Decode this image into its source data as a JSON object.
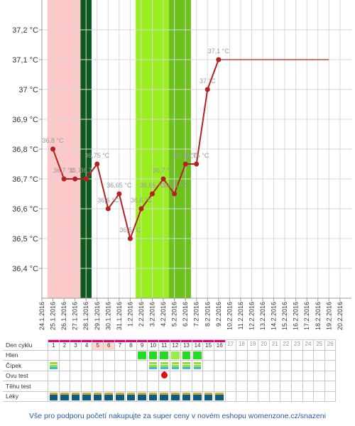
{
  "chart_data": {
    "type": "line",
    "ylim": [
      36.3,
      37.3
    ],
    "y_ticks": [
      {
        "value": 37.2,
        "label": "37,2 °C"
      },
      {
        "value": 37.1,
        "label": "37,1 °C"
      },
      {
        "value": 37.0,
        "label": "37 °C"
      },
      {
        "value": 36.9,
        "label": "36,9 °C"
      },
      {
        "value": 36.8,
        "label": "36,8 °C"
      },
      {
        "value": 36.7,
        "label": "36,7 °C"
      },
      {
        "value": 36.6,
        "label": "36,6 °C"
      },
      {
        "value": 36.5,
        "label": "36,5 °C"
      },
      {
        "value": 36.4,
        "label": "36,4 °C"
      }
    ],
    "categories": [
      "24.1.2016",
      "25.1.2016",
      "26.1.2016",
      "27.1.2016",
      "28.1.2016",
      "29.1.2016",
      "30.1.2016",
      "31.1.2016",
      "1.2.2016",
      "2.2.2016",
      "3.2.2016",
      "4.2.2016",
      "5.2.2016",
      "6.2.2016",
      "7.2.2016",
      "8.2.2016",
      "9.2.2016",
      "10.2.2016",
      "11.2.2016",
      "12.2.2016",
      "13.2.2016",
      "14.2.2016",
      "15.2.2016",
      "16.2.2016",
      "17.2.2016",
      "18.2.2016",
      "19.2.2016",
      "20.2.2016"
    ],
    "series": [
      {
        "values": [
          null,
          36.8,
          36.7,
          36.7,
          36.7,
          36.75,
          36.6,
          36.65,
          36.5,
          36.6,
          36.65,
          36.7,
          36.65,
          36.75,
          36.75,
          37.0,
          37.1,
          null,
          null,
          null,
          null,
          null,
          null,
          null,
          null,
          null,
          null,
          null
        ],
        "color": "#b22222"
      }
    ],
    "projection": {
      "from": "9.2.2016",
      "to": "19.2.2016",
      "value": 37.1,
      "color": "#b22222"
    },
    "point_labels": [
      {
        "x": "25.1.2016",
        "text": "36,8 °C"
      },
      {
        "x": "26.1.2016",
        "text": "36,7 °C"
      },
      {
        "x": "27.1.2016",
        "text": "36,7"
      },
      {
        "x": "28.1.2016",
        "text": "36,7"
      },
      {
        "x": "29.1.2016",
        "text": "36,75 °C"
      },
      {
        "x": "30.1.2016",
        "text": "36,6 °C"
      },
      {
        "x": "31.1.2016",
        "text": "36,65 °C"
      },
      {
        "x": "1.2.2016",
        "text": "36,5 °C"
      },
      {
        "x": "2.2.2016",
        "text": "36,6 °C"
      },
      {
        "x": "3.2.2016",
        "text": "36,65 °C"
      },
      {
        "x": "4.2.2016",
        "text": "36,7 °C"
      },
      {
        "x": "5.2.2016",
        "text": "36,65 °C"
      },
      {
        "x": "6.2.2016",
        "text": "36,75 °C"
      },
      {
        "x": "7.2.2016",
        "text": "36,75 °C"
      },
      {
        "x": "8.2.2016",
        "text": "37 °C"
      },
      {
        "x": "9.2.2016",
        "text": "37,1 °C"
      }
    ],
    "bands": [
      {
        "from": "25.1.2016",
        "to": "27.1.2016",
        "color": "#ffc8c8"
      },
      {
        "from": "28.1.2016",
        "to": "28.1.2016",
        "color": "#0b5a1c"
      },
      {
        "from": "2.2.2016",
        "to": "4.2.2016",
        "color": "#99ee1e"
      },
      {
        "from": "5.2.2016",
        "to": "6.2.2016",
        "color": "#6cc21a"
      }
    ],
    "grid": true
  },
  "cycle_table": {
    "row_labels": [
      "Den cyklu",
      "Hlen",
      "Čípek",
      "Ovu test",
      "Těhu test",
      "Léky"
    ],
    "days": [
      "1",
      "2",
      "3",
      "4",
      "5",
      "6",
      "7",
      "8",
      "9",
      "10",
      "11",
      "12",
      "13",
      "14",
      "15",
      "16",
      "17",
      "18",
      "19",
      "20",
      "21",
      "22",
      "23",
      "24",
      "25",
      "26"
    ],
    "day_highlight": {
      "1": "#ffffff",
      "2": "#ffffff",
      "3": "#ffffff",
      "4": "#ffffff",
      "5": "#ffd8d0",
      "6": "#ffd8d0"
    },
    "marked_days": [
      "1",
      "2",
      "3",
      "4",
      "5",
      "6",
      "7",
      "8",
      "9",
      "10",
      "11",
      "12",
      "13",
      "14",
      "15",
      "16"
    ],
    "hlen": {
      "9": "#22dd22",
      "10": "#22dd22",
      "11": "#22dd22",
      "12": "#99ee44",
      "13": "#22dd22",
      "14": "#22dd22"
    },
    "cipek_days": [
      "1",
      "10",
      "11",
      "12",
      "13",
      "14"
    ],
    "ovu_test_days": [
      "11"
    ],
    "leky_days": [
      "1",
      "2",
      "3",
      "4",
      "5",
      "6",
      "7",
      "8",
      "9",
      "10",
      "11",
      "12",
      "13",
      "14",
      "15",
      "16"
    ],
    "colors": {
      "cipek_top": "#99dd33",
      "cipek_bottom": "#33bbee",
      "leky_top": "#c8a838",
      "leky_bottom": "#0e5a80"
    }
  },
  "footer_text": "Vše pro podporu početí nakupujte za super ceny v novém eshopu womenzone.cz/snazeni"
}
